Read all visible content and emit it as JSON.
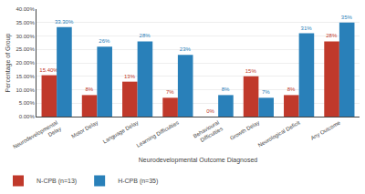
{
  "chart_data": {
    "type": "bar",
    "xlabel": "Neurodevelopmental Outcome Diagnosed",
    "ylabel": "Percentage of Group",
    "categories": [
      "Neurodevelopmental\nDelay",
      "Motor Delay",
      "Language Delay",
      "Learning Difficulties",
      "Behavioural\nDifficulties",
      "Growth Delay",
      "Neurological Deficit",
      "Any Outcome"
    ],
    "series": [
      {
        "name": "N-CPB (n=13)",
        "color": "#C0392B",
        "values": [
          15.4,
          8,
          13,
          7,
          0,
          15,
          8,
          28
        ],
        "value_labels": [
          "15.40%",
          "8%",
          "13%",
          "7%",
          "0%",
          "15%",
          "8%",
          "28%"
        ]
      },
      {
        "name": "H-CPB (n=35)",
        "color": "#2980B9",
        "values": [
          33.3,
          26,
          28,
          23,
          8,
          7,
          31,
          35
        ],
        "value_labels": [
          "33.30%",
          "26%",
          "28%",
          "23%",
          "8%",
          "7%",
          "31%",
          "35%"
        ]
      }
    ],
    "ylim": [
      0,
      40
    ],
    "yticks": [
      {
        "value": 0,
        "label": "0.00%"
      },
      {
        "value": 5,
        "label": "5.00%"
      },
      {
        "value": 10,
        "label": "10.00%"
      },
      {
        "value": 15,
        "label": "15.00%"
      },
      {
        "value": 20,
        "label": "20.00%"
      },
      {
        "value": 25,
        "label": "25.00%"
      },
      {
        "value": 30,
        "label": "30.00%"
      },
      {
        "value": 35,
        "label": "35.00%"
      },
      {
        "value": 40,
        "label": "40.00%"
      }
    ],
    "grid": true,
    "legend": "lower left",
    "data_labels": true
  }
}
